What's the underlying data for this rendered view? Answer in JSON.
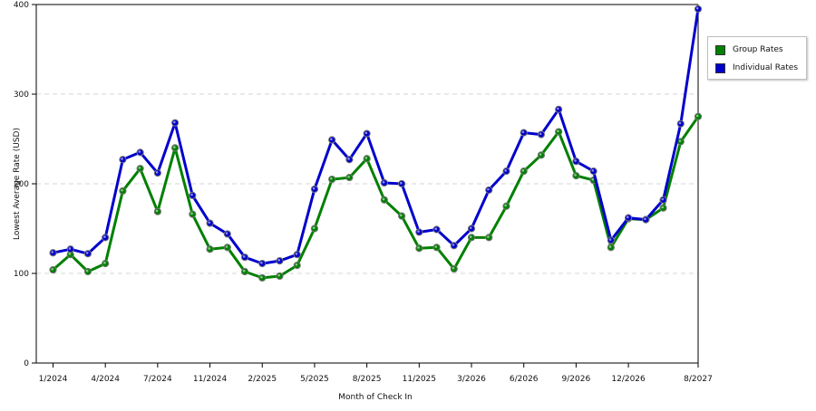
{
  "chart_data": {
    "type": "line",
    "title": "",
    "xlabel": "Month of Check In",
    "ylabel": "Lowest Average Rate (USD)",
    "ylim": [
      0,
      400
    ],
    "yticks": [
      0,
      100,
      200,
      300,
      400
    ],
    "grid": true,
    "legend_position": "top-right",
    "x_tick_labels": [
      "1/2024",
      "4/2024",
      "7/2024",
      "11/2024",
      "2/2025",
      "5/2025",
      "8/2025",
      "11/2025",
      "3/2026",
      "6/2026",
      "9/2026",
      "12/2026",
      "8/2027"
    ],
    "x_tick_indices": [
      0,
      3,
      6,
      9,
      12,
      15,
      18,
      21,
      24,
      27,
      30,
      33,
      37
    ],
    "series": [
      {
        "name": "Group Rates",
        "color": "#008000",
        "values": [
          104,
          121,
          102,
          111,
          192,
          217,
          169,
          240,
          166,
          127,
          129,
          102,
          95,
          97,
          109,
          150,
          205,
          207,
          228,
          182,
          164,
          128,
          129,
          105,
          140,
          140,
          175,
          214,
          232,
          258,
          209,
          204,
          129,
          161,
          160,
          173,
          247,
          275
        ]
      },
      {
        "name": "Individual Rates",
        "color": "#0000cc",
        "values": [
          123,
          127,
          122,
          140,
          227,
          235,
          212,
          268,
          187,
          156,
          144,
          118,
          111,
          114,
          121,
          194,
          249,
          227,
          256,
          201,
          200,
          146,
          149,
          131,
          150,
          193,
          214,
          257,
          255,
          283,
          225,
          214,
          137,
          162,
          160,
          182,
          267,
          395
        ]
      }
    ]
  }
}
